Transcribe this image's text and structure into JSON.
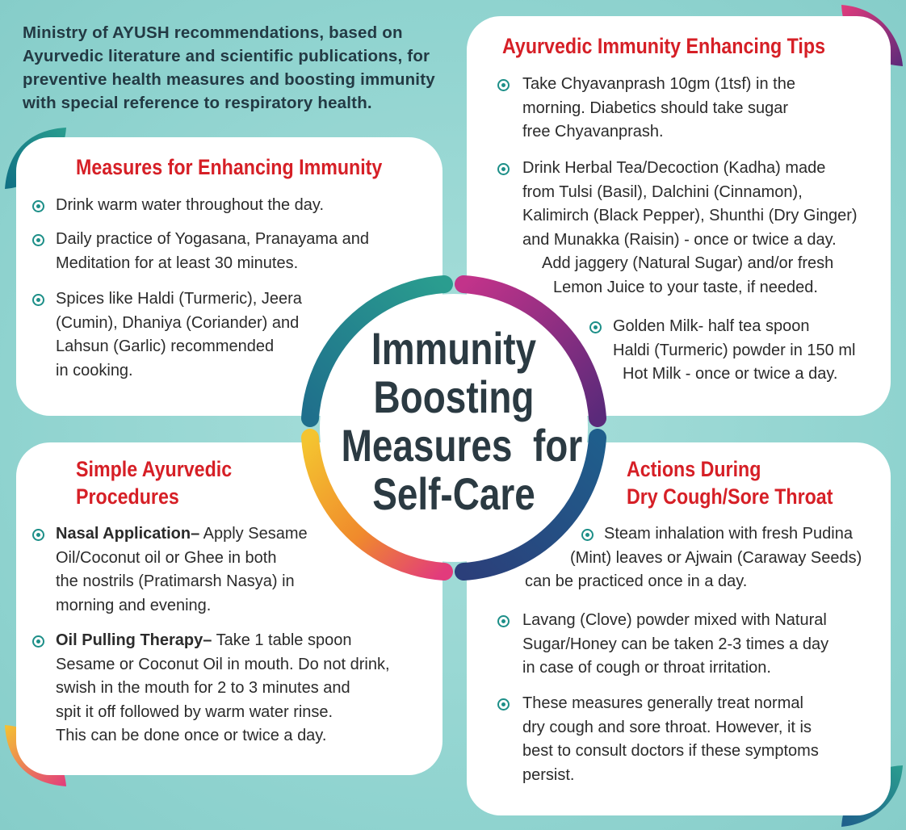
{
  "intro": {
    "lines": [
      "Ministry of AYUSH recommendations, based on",
      "Ayurvedic literature and scientific publications, for",
      "preventive health measures and boosting immunity",
      "with special reference to respiratory health."
    ]
  },
  "center": {
    "lines": [
      "Immunity",
      "Boosting",
      "Measures  for",
      "Self-Care"
    ]
  },
  "measures": {
    "title": "Measures for Enhancing Immunity",
    "items": [
      {
        "lines": [
          "Drink warm water throughout the day."
        ]
      },
      {
        "lines": [
          "Daily practice of Yogasana, Pranayama and",
          "Meditation for at least 30 minutes."
        ]
      },
      {
        "lines": [
          "Spices like Haldi (Turmeric), Jeera",
          "(Cumin), Dhaniya (Coriander) and",
          "Lahsun (Garlic) recommended",
          "in cooking."
        ]
      }
    ]
  },
  "tips": {
    "title": "Ayurvedic Immunity Enhancing Tips",
    "items": [
      {
        "lines": [
          "Take Chyavanprash 10gm (1tsf) in the",
          "morning. Diabetics should take sugar",
          "free Chyavanprash."
        ]
      },
      {
        "lines": [
          "Drink Herbal Tea/Decoction (Kadha) made",
          "from Tulsi (Basil), Dalchini (Cinnamon),",
          "Kalimirch (Black Pepper), Shunthi (Dry Ginger)",
          "and Munakka (Raisin) - once or twice a day.",
          "Add jaggery (Natural Sugar) and/or fresh",
          "Lemon Juice to your taste, if needed."
        ]
      },
      {
        "lines": [
          "Golden Milk- half tea spoon",
          "Haldi (Turmeric) powder in 150 ml",
          "Hot Milk - once or twice a day."
        ]
      }
    ]
  },
  "procedures": {
    "title_lines": [
      "Simple Ayurvedic",
      "Procedures"
    ],
    "items": [
      {
        "bold": "Nasal Application–",
        "lines": [
          " Apply Sesame",
          "Oil/Coconut oil or Ghee in both",
          "the nostrils (Pratimarsh Nasya) in",
          "morning and evening."
        ]
      },
      {
        "bold": "Oil Pulling Therapy–",
        "lines": [
          " Take 1 table spoon",
          "Sesame or Coconut Oil in mouth. Do not drink,",
          "swish in the mouth for 2 to 3 minutes and",
          "spit it off followed by warm water rinse.",
          "This can be done once or twice a day."
        ]
      }
    ]
  },
  "actions": {
    "title_lines": [
      "Actions During",
      "Dry Cough/Sore Throat"
    ],
    "items": [
      {
        "lines": [
          "Steam inhalation with fresh Pudina",
          "(Mint) leaves or Ajwain (Caraway Seeds)",
          "can be practiced once in a day."
        ]
      },
      {
        "lines": [
          "Lavang (Clove) powder mixed with Natural",
          "Sugar/Honey can be taken 2-3 times a day",
          "in case of cough or throat irritation."
        ]
      },
      {
        "lines": [
          "These measures generally treat normal",
          "dry cough and sore throat. However, it is",
          "best to consult doctors if these symptoms",
          "persist."
        ]
      }
    ]
  },
  "colors": {
    "background": "#8fd3cf",
    "title_red": "#d61f26",
    "teal": "#1d8f88",
    "center_text": "#2b3a42",
    "purple": "#6a2a78",
    "pink": "#e23b7c",
    "orange": "#f08a2c",
    "yellow": "#f4c430",
    "blue": "#1f5e8c"
  }
}
